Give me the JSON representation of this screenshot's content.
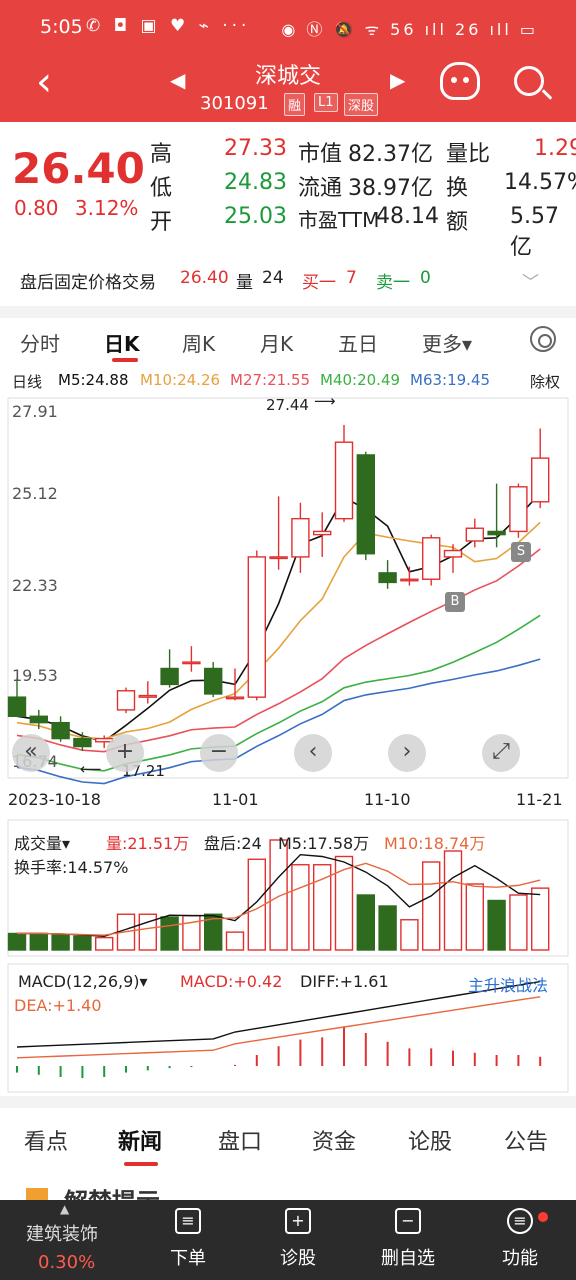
{
  "statusbar": {
    "time": "5:05",
    "left_icons": "✆ ◘ ▣ ♥ ⌁ ···",
    "right_icons": "◉ Ⓝ 🔕 ᯤ 56 ıll 26 ıll ▭"
  },
  "header": {
    "stock_name": "深城交",
    "stock_code": "301091",
    "tags": [
      "融",
      "L1",
      "深股"
    ],
    "back_icon": "back-arrow-icon",
    "color": "#e64340"
  },
  "quote": {
    "price": "26.40",
    "change": "0.80",
    "change_pct": "3.12%",
    "high_label": "高",
    "high": "27.33",
    "low_label": "低",
    "low": "24.83",
    "open_label": "开",
    "open": "25.03",
    "mktcap_label": "市值",
    "mktcap": "82.37亿",
    "float_label": "流通",
    "float": "38.97亿",
    "pe_label": "市盈TTM",
    "pe": "48.14",
    "volratio_label": "量比",
    "volratio": "1.29",
    "turnover_label": "换",
    "turnover": "14.57%",
    "amount_label": "额",
    "amount": "5.57亿"
  },
  "afterhours": {
    "label": "盘后固定价格交易",
    "price": "26.40",
    "vol_label": "量",
    "vol": "24",
    "buy_label": "买一",
    "buy": "7",
    "sell_label": "卖一",
    "sell": "0"
  },
  "tabs": [
    "分时",
    "日K",
    "周K",
    "月K",
    "五日",
    "更多▾"
  ],
  "active_tab": "日K",
  "ma_legend": {
    "period": "日线",
    "m5": "M5:24.88",
    "m10": "M10:24.26",
    "m27": "M27:21.55",
    "m40": "M40:20.49",
    "m63": "M63:19.45",
    "adjust": "除权",
    "colors": {
      "m5": "#111111",
      "m10": "#e6a23c",
      "m27": "#e8505b",
      "m40": "#3cb043",
      "m63": "#3a6fc4"
    }
  },
  "price_axis": [
    "27.91",
    "25.12",
    "22.33",
    "19.53",
    "16.74"
  ],
  "annotations": {
    "high": "27.44",
    "low": "17.21",
    "buy_mark": "B",
    "sell_mark": "S"
  },
  "dates": [
    "2023-10-18",
    "11-01",
    "11-10",
    "11-21"
  ],
  "overlay_buttons": [
    "«",
    "+",
    "−",
    "‹",
    "›",
    "⤢"
  ],
  "chart_data": {
    "type": "candlestick",
    "ylim": [
      16.74,
      27.91
    ],
    "candles": [
      {
        "o": 18.9,
        "h": 19.5,
        "l": 18.3,
        "c": 18.3
      },
      {
        "o": 18.3,
        "h": 18.5,
        "l": 17.9,
        "c": 18.1
      },
      {
        "o": 18.1,
        "h": 18.3,
        "l": 17.5,
        "c": 17.6
      },
      {
        "o": 17.6,
        "h": 17.8,
        "l": 17.21,
        "c": 17.35
      },
      {
        "o": 17.5,
        "h": 17.7,
        "l": 17.3,
        "c": 17.6
      },
      {
        "o": 18.5,
        "h": 19.2,
        "l": 18.4,
        "c": 19.1
      },
      {
        "o": 18.9,
        "h": 19.4,
        "l": 18.7,
        "c": 18.95
      },
      {
        "o": 19.8,
        "h": 20.4,
        "l": 19.2,
        "c": 19.3
      },
      {
        "o": 20.0,
        "h": 20.5,
        "l": 19.7,
        "c": 20.0
      },
      {
        "o": 19.8,
        "h": 20.0,
        "l": 18.9,
        "c": 19.0
      },
      {
        "o": 18.9,
        "h": 19.8,
        "l": 18.8,
        "c": 18.9
      },
      {
        "o": 18.9,
        "h": 23.5,
        "l": 18.8,
        "c": 23.3
      },
      {
        "o": 23.3,
        "h": 25.2,
        "l": 22.9,
        "c": 23.3
      },
      {
        "o": 23.3,
        "h": 25.0,
        "l": 22.8,
        "c": 24.5
      },
      {
        "o": 24.0,
        "h": 24.7,
        "l": 23.3,
        "c": 24.1
      },
      {
        "o": 24.5,
        "h": 27.44,
        "l": 24.4,
        "c": 26.9
      },
      {
        "o": 26.5,
        "h": 26.6,
        "l": 23.2,
        "c": 23.4
      },
      {
        "o": 22.8,
        "h": 23.2,
        "l": 22.3,
        "c": 22.5
      },
      {
        "o": 22.6,
        "h": 23.0,
        "l": 22.4,
        "c": 22.6
      },
      {
        "o": 22.6,
        "h": 24.0,
        "l": 22.4,
        "c": 23.9
      },
      {
        "o": 23.3,
        "h": 23.7,
        "l": 22.8,
        "c": 23.5
      },
      {
        "o": 23.8,
        "h": 24.5,
        "l": 23.6,
        "c": 24.2
      },
      {
        "o": 24.1,
        "h": 25.6,
        "l": 23.6,
        "c": 24.0
      },
      {
        "o": 24.1,
        "h": 25.6,
        "l": 23.9,
        "c": 25.5
      },
      {
        "o": 25.03,
        "h": 27.33,
        "l": 24.83,
        "c": 26.4
      }
    ],
    "volume": [
      0.6,
      0.6,
      0.55,
      0.5,
      0.45,
      1.3,
      1.3,
      1.2,
      1.25,
      1.3,
      0.65,
      3.3,
      4.0,
      3.1,
      3.1,
      3.4,
      2.0,
      1.6,
      1.1,
      3.2,
      3.6,
      2.4,
      1.8,
      2.0,
      2.25
    ],
    "macd": [
      -0.3,
      -0.4,
      -0.5,
      -0.55,
      -0.5,
      -0.3,
      -0.2,
      -0.1,
      -0.05,
      0.0,
      0.05,
      0.5,
      0.9,
      1.2,
      1.3,
      1.8,
      1.5,
      1.1,
      0.8,
      0.8,
      0.7,
      0.6,
      0.5,
      0.5,
      0.42
    ]
  },
  "volume_legend": {
    "label": "成交量▾",
    "vol": "量:21.51万",
    "after": "盘后:24",
    "m5": "M5:17.58万",
    "m10": "M10:18.74万",
    "turnover": "换手率:14.57%"
  },
  "macd_legend": {
    "label": "MACD(12,26,9)▾",
    "macd": "MACD:+0.42",
    "diff": "DIFF:+1.61",
    "dea": "DEA:+1.40",
    "strategy": "主升浪战法"
  },
  "news_tabs": [
    "看点",
    "新闻",
    "盘口",
    "资金",
    "论股",
    "公告"
  ],
  "active_news_tab": "新闻",
  "news_title": "解禁提示",
  "bottom": {
    "sector": "建筑装饰",
    "sector_pct": "0.30%",
    "items": [
      "下单",
      "诊股",
      "删自选",
      "功能"
    ],
    "icons": [
      "order-icon",
      "diagnose-icon",
      "remove-watchlist-icon",
      "menu-icon"
    ]
  }
}
